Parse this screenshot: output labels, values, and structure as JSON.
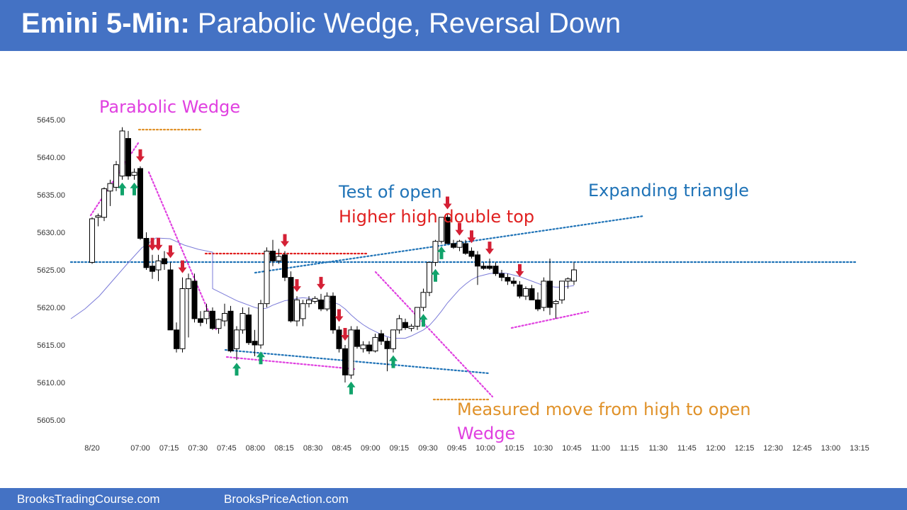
{
  "header": {
    "title_bold": "Emini 5-Min:",
    "title_rest": "Parabolic Wedge, Reversal Down"
  },
  "footer": {
    "left_link": "BrooksTradingCourse.com",
    "right_link": "BrooksPriceAction.com"
  },
  "colors": {
    "header_bg": "#4472c4",
    "bull_arrow": "#11a36b",
    "bear_arrow": "#d42035",
    "magenta": "#e040e0",
    "orange": "#e0922a",
    "blue_line": "#1f73b7",
    "red_line": "#e02020",
    "ema": "#7b7bd8"
  },
  "chart_data": {
    "type": "candlestick",
    "title": "",
    "ylim": [
      5604,
      5648
    ],
    "y_ticks": [
      "5645.00",
      "5640.00",
      "5635.00",
      "5630.00",
      "5625.00",
      "5620.00",
      "5615.00",
      "5610.00",
      "5605.00"
    ],
    "x_ticks": [
      "8/20",
      "07:00",
      "07:15",
      "07:30",
      "07:45",
      "08:00",
      "08:15",
      "08:30",
      "08:45",
      "09:00",
      "09:15",
      "09:30",
      "09:45",
      "10:00",
      "10:15",
      "10:30",
      "10:45",
      "11:00",
      "11:15",
      "11:30",
      "11:45",
      "12:00",
      "12:15",
      "12:30",
      "12:45",
      "13:00",
      "13:15"
    ],
    "candles": [
      {
        "o": 5626.0,
        "h": 5632.0,
        "l": 5625.8,
        "c": 5631.8
      },
      {
        "o": 5632.0,
        "h": 5632.5,
        "l": 5630.8,
        "c": 5632.2
      },
      {
        "o": 5632.0,
        "h": 5636.0,
        "l": 5631.5,
        "c": 5635.8
      },
      {
        "o": 5635.5,
        "h": 5637.0,
        "l": 5633.5,
        "c": 5636.5
      },
      {
        "o": 5636.0,
        "h": 5639.5,
        "l": 5635.5,
        "c": 5639.0
      },
      {
        "o": 5637.5,
        "h": 5644.0,
        "l": 5637.0,
        "c": 5643.5
      },
      {
        "o": 5642.5,
        "h": 5643.5,
        "l": 5637.0,
        "c": 5637.5
      },
      {
        "o": 5637.6,
        "h": 5638.5,
        "l": 5637.0,
        "c": 5638.0
      },
      {
        "o": 5638.5,
        "h": 5638.8,
        "l": 5629.0,
        "c": 5629.2
      },
      {
        "o": 5629.2,
        "h": 5630.0,
        "l": 5625.0,
        "c": 5625.3
      },
      {
        "o": 5625.5,
        "h": 5627.0,
        "l": 5623.8,
        "c": 5624.8
      },
      {
        "o": 5625.0,
        "h": 5627.0,
        "l": 5623.5,
        "c": 5626.2
      },
      {
        "o": 5626.5,
        "h": 5627.5,
        "l": 5625.0,
        "c": 5625.8
      },
      {
        "o": 5625.0,
        "h": 5626.0,
        "l": 5617.0,
        "c": 5617.0
      },
      {
        "o": 5617.0,
        "h": 5618.0,
        "l": 5614.0,
        "c": 5614.5
      },
      {
        "o": 5614.5,
        "h": 5624.0,
        "l": 5614.0,
        "c": 5622.5
      },
      {
        "o": 5622.5,
        "h": 5624.5,
        "l": 5616.0,
        "c": 5623.8
      },
      {
        "o": 5623.5,
        "h": 5624.5,
        "l": 5618.0,
        "c": 5618.5
      },
      {
        "o": 5618.5,
        "h": 5619.5,
        "l": 5617.5,
        "c": 5618.0
      },
      {
        "o": 5618.5,
        "h": 5620.5,
        "l": 5617.8,
        "c": 5619.5
      },
      {
        "o": 5619.5,
        "h": 5620.0,
        "l": 5617.0,
        "c": 5617.2
      },
      {
        "o": 5617.2,
        "h": 5618.5,
        "l": 5616.5,
        "c": 5618.4
      },
      {
        "o": 5618.2,
        "h": 5620.5,
        "l": 5617.5,
        "c": 5619.2
      },
      {
        "o": 5619.5,
        "h": 5620.2,
        "l": 5614.0,
        "c": 5614.2
      },
      {
        "o": 5614.5,
        "h": 5617.5,
        "l": 5613.0,
        "c": 5617.0
      },
      {
        "o": 5617.0,
        "h": 5620.0,
        "l": 5616.5,
        "c": 5619.2
      },
      {
        "o": 5619.0,
        "h": 5620.0,
        "l": 5615.0,
        "c": 5615.3
      },
      {
        "o": 5615.5,
        "h": 5617.0,
        "l": 5613.5,
        "c": 5615.0
      },
      {
        "o": 5615.0,
        "h": 5621.0,
        "l": 5614.5,
        "c": 5620.5
      },
      {
        "o": 5620.5,
        "h": 5628.0,
        "l": 5620.0,
        "c": 5627.5
      },
      {
        "o": 5627.5,
        "h": 5629.0,
        "l": 5625.5,
        "c": 5626.2
      },
      {
        "o": 5626.2,
        "h": 5627.8,
        "l": 5625.8,
        "c": 5626.8
      },
      {
        "o": 5627.0,
        "h": 5627.5,
        "l": 5623.5,
        "c": 5624.0
      },
      {
        "o": 5624.0,
        "h": 5624.8,
        "l": 5618.0,
        "c": 5618.2
      },
      {
        "o": 5618.2,
        "h": 5621.5,
        "l": 5617.5,
        "c": 5621.0
      },
      {
        "o": 5618.5,
        "h": 5621.0,
        "l": 5617.5,
        "c": 5620.5
      },
      {
        "o": 5620.5,
        "h": 5621.5,
        "l": 5620.0,
        "c": 5621.0
      },
      {
        "o": 5620.8,
        "h": 5621.5,
        "l": 5620.5,
        "c": 5621.2
      },
      {
        "o": 5621.0,
        "h": 5621.8,
        "l": 5619.5,
        "c": 5619.8
      },
      {
        "o": 5619.8,
        "h": 5622.0,
        "l": 5619.5,
        "c": 5621.5
      },
      {
        "o": 5621.5,
        "h": 5622.0,
        "l": 5616.5,
        "c": 5617.0
      },
      {
        "o": 5617.0,
        "h": 5617.5,
        "l": 5614.0,
        "c": 5614.5
      },
      {
        "o": 5614.5,
        "h": 5615.0,
        "l": 5610.0,
        "c": 5611.0
      },
      {
        "o": 5611.0,
        "h": 5617.5,
        "l": 5610.5,
        "c": 5617.0
      },
      {
        "o": 5617.0,
        "h": 5617.5,
        "l": 5614.5,
        "c": 5614.8
      },
      {
        "o": 5614.5,
        "h": 5615.5,
        "l": 5614.0,
        "c": 5615.0
      },
      {
        "o": 5615.0,
        "h": 5615.5,
        "l": 5613.8,
        "c": 5614.2
      },
      {
        "o": 5614.2,
        "h": 5616.5,
        "l": 5614.0,
        "c": 5616.0
      },
      {
        "o": 5616.5,
        "h": 5617.0,
        "l": 5615.0,
        "c": 5615.5
      },
      {
        "o": 5615.5,
        "h": 5616.0,
        "l": 5611.5,
        "c": 5614.5
      },
      {
        "o": 5614.5,
        "h": 5617.0,
        "l": 5614.0,
        "c": 5617.0
      },
      {
        "o": 5617.0,
        "h": 5619.0,
        "l": 5616.5,
        "c": 5618.5
      },
      {
        "o": 5618.0,
        "h": 5618.5,
        "l": 5617.0,
        "c": 5617.3
      },
      {
        "o": 5617.2,
        "h": 5617.8,
        "l": 5616.8,
        "c": 5617.5
      },
      {
        "o": 5617.5,
        "h": 5620.0,
        "l": 5617.0,
        "c": 5620.0
      },
      {
        "o": 5620.0,
        "h": 5622.5,
        "l": 5619.5,
        "c": 5622.0
      },
      {
        "o": 5622.0,
        "h": 5626.0,
        "l": 5621.5,
        "c": 5626.0
      },
      {
        "o": 5626.0,
        "h": 5629.0,
        "l": 5625.5,
        "c": 5628.8
      },
      {
        "o": 5628.8,
        "h": 5632.0,
        "l": 5628.5,
        "c": 5632.0
      },
      {
        "o": 5632.0,
        "h": 5632.5,
        "l": 5628.5,
        "c": 5628.5
      },
      {
        "o": 5628.5,
        "h": 5629.0,
        "l": 5627.8,
        "c": 5628.0
      },
      {
        "o": 5628.0,
        "h": 5629.0,
        "l": 5627.5,
        "c": 5628.8
      },
      {
        "o": 5628.5,
        "h": 5629.0,
        "l": 5627.0,
        "c": 5627.2
      },
      {
        "o": 5627.5,
        "h": 5628.0,
        "l": 5626.5,
        "c": 5626.8
      },
      {
        "o": 5627.0,
        "h": 5627.5,
        "l": 5623.0,
        "c": 5625.5
      },
      {
        "o": 5625.5,
        "h": 5626.0,
        "l": 5625.0,
        "c": 5625.2
      },
      {
        "o": 5625.5,
        "h": 5626.5,
        "l": 5625.0,
        "c": 5625.2
      },
      {
        "o": 5625.5,
        "h": 5626.0,
        "l": 5624.2,
        "c": 5624.5
      },
      {
        "o": 5624.5,
        "h": 5625.0,
        "l": 5623.5,
        "c": 5624.0
      },
      {
        "o": 5624.0,
        "h": 5624.5,
        "l": 5623.0,
        "c": 5623.5
      },
      {
        "o": 5623.5,
        "h": 5624.0,
        "l": 5622.8,
        "c": 5623.2
      },
      {
        "o": 5623.0,
        "h": 5623.5,
        "l": 5621.2,
        "c": 5621.5
      },
      {
        "o": 5621.5,
        "h": 5622.8,
        "l": 5621.0,
        "c": 5622.5
      },
      {
        "o": 5622.5,
        "h": 5623.0,
        "l": 5621.0,
        "c": 5621.0
      },
      {
        "o": 5621.0,
        "h": 5622.0,
        "l": 5619.5,
        "c": 5619.8
      },
      {
        "o": 5620.0,
        "h": 5624.0,
        "l": 5619.5,
        "c": 5623.5
      },
      {
        "o": 5623.5,
        "h": 5626.5,
        "l": 5619.0,
        "c": 5620.0
      },
      {
        "o": 5620.5,
        "h": 5621.0,
        "l": 5618.5,
        "c": 5620.8
      },
      {
        "o": 5621.0,
        "h": 5623.5,
        "l": 5620.5,
        "c": 5623.5
      },
      {
        "o": 5623.5,
        "h": 5624.0,
        "l": 5622.5,
        "c": 5623.8
      },
      {
        "o": 5623.5,
        "h": 5626.0,
        "l": 5623.0,
        "c": 5625.0
      }
    ],
    "ema": [
      5618.5,
      5619.4,
      5620.7,
      5622.0,
      5623.4,
      5625.3,
      5626.9,
      5628.5,
      5629.2,
      5629.3,
      5628.9,
      5628.4,
      5628.0,
      5627.5,
      5626.8,
      5626.0,
      5625.2,
      5624.4,
      5623.7,
      5623.0,
      5622.5,
      5622.1,
      5621.7,
      5621.3,
      5620.9,
      5620.6,
      5620.3,
      5620.0,
      5619.8,
      5619.9,
      5620.3,
      5620.6,
      5620.9,
      5621.0,
      5621.2,
      5621.3,
      5621.2,
      5621.0,
      5620.9,
      5620.8,
      5620.7,
      5620.4,
      5619.8,
      5619.0,
      5618.3,
      5617.7,
      5617.2,
      5616.8,
      5616.4,
      5616.1,
      5615.9,
      5615.9,
      5615.9,
      5616.2,
      5616.6,
      5617.0,
      5617.6,
      5618.5,
      5619.5,
      5620.6,
      5621.5,
      5622.4,
      5623.1,
      5623.7,
      5624.1,
      5624.3,
      5624.5,
      5624.6,
      5624.6,
      5624.5,
      5624.3,
      5624.1,
      5623.8,
      5623.5,
      5623.2,
      5622.9,
      5622.8,
      5622.7,
      5622.7,
      5622.8,
      5622.9
    ],
    "bull_arrows": [
      5,
      7,
      24,
      28,
      43,
      50,
      55,
      57,
      58
    ],
    "bear_arrows": [
      8,
      10,
      11,
      13,
      15,
      32,
      34,
      38,
      41,
      42,
      59,
      61,
      63,
      66,
      71
    ],
    "annotations": [
      {
        "text": "Parabolic Wedge",
        "color": "magenta"
      },
      {
        "text": "Test of open",
        "color": "blue"
      },
      {
        "text": "Higher high double top",
        "color": "red"
      },
      {
        "text": "Expanding triangle",
        "color": "blue"
      },
      {
        "text": "Measured move from high to open",
        "color": "orange"
      },
      {
        "text": "Wedge",
        "color": "magenta"
      }
    ]
  }
}
